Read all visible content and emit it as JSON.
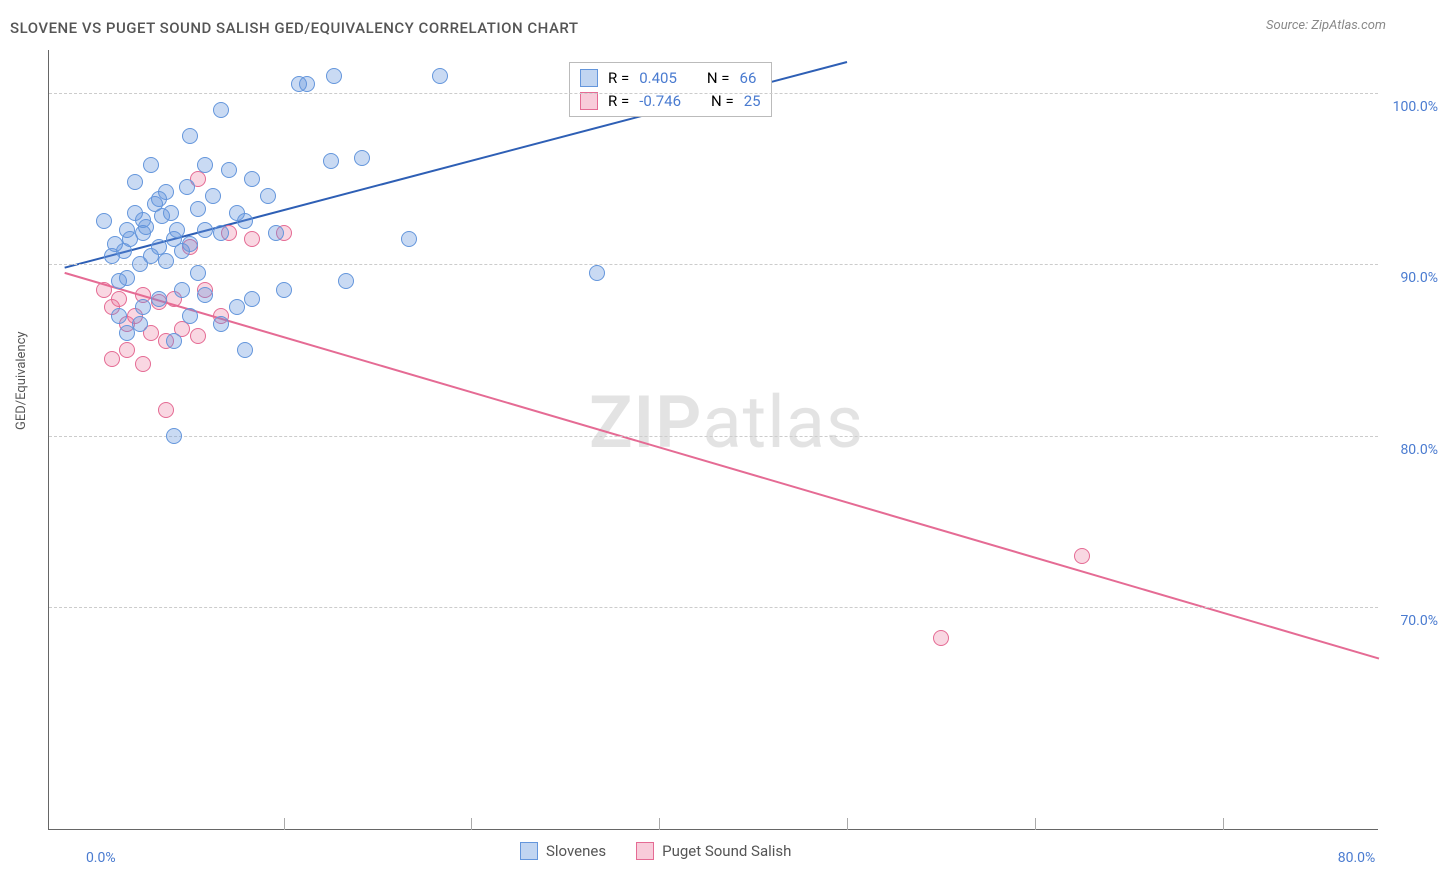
{
  "header": {
    "title": "SLOVENE VS PUGET SOUND SALISH GED/EQUIVALENCY CORRELATION CHART",
    "source_label": "Source: ZipAtlas.com"
  },
  "chart": {
    "type": "scatter",
    "ylabel": "GED/Equivalency",
    "xlim": [
      -3,
      82
    ],
    "ylim": [
      57,
      102.5
    ],
    "y_ticks": [
      70.0,
      80.0,
      90.0,
      100.0
    ],
    "y_tick_labels": [
      "70.0%",
      "80.0%",
      "90.0%",
      "100.0%"
    ],
    "x_ticks": [
      0.0,
      80.0
    ],
    "x_tick_labels": [
      "0.0%",
      "80.0%"
    ],
    "x_minor_ticks": [
      12,
      24,
      36,
      48,
      60,
      72
    ],
    "background_color": "#ffffff",
    "grid_color": "#cccccc",
    "axis_color": "#666666",
    "marker_size": 16,
    "colors": {
      "blue_fill": "rgba(100,150,220,0.35)",
      "blue_stroke": "#6496dc",
      "pink_fill": "rgba(235,110,150,0.28)",
      "pink_stroke": "#e56b94",
      "tick_label": "#4a7bd0"
    },
    "series_blue": {
      "name": "Slovenes",
      "r_value": "0.405",
      "n_value": "66",
      "trend": {
        "x1": -2,
        "y1": 89.8,
        "x2": 48,
        "y2": 101.8,
        "color": "#2e5fb5",
        "width": 2
      },
      "points": [
        [
          0.5,
          92.5
        ],
        [
          1,
          90.5
        ],
        [
          1.2,
          91.2
        ],
        [
          1.5,
          89
        ],
        [
          1.8,
          90.8
        ],
        [
          2,
          92
        ],
        [
          2.2,
          91.5
        ],
        [
          2.5,
          93
        ],
        [
          2.8,
          90
        ],
        [
          3,
          91.8
        ],
        [
          3.2,
          92.2
        ],
        [
          3.5,
          90.5
        ],
        [
          3.8,
          93.5
        ],
        [
          4,
          91
        ],
        [
          4.2,
          92.8
        ],
        [
          4.5,
          90.2
        ],
        [
          4.8,
          93
        ],
        [
          5,
          91.5
        ],
        [
          5.2,
          92
        ],
        [
          5.5,
          90.8
        ],
        [
          5.8,
          94.5
        ],
        [
          6,
          91.2
        ],
        [
          6.5,
          93.2
        ],
        [
          7,
          92
        ],
        [
          7.5,
          94
        ],
        [
          8,
          91.8
        ],
        [
          8.5,
          95.5
        ],
        [
          9,
          93
        ],
        [
          9.5,
          92.5
        ],
        [
          10,
          95
        ],
        [
          11,
          94
        ],
        [
          11.5,
          91.8
        ],
        [
          12,
          88.5
        ],
        [
          6,
          97.5
        ],
        [
          7,
          95.8
        ],
        [
          8,
          99
        ],
        [
          10,
          88
        ],
        [
          13,
          100.5
        ],
        [
          13.5,
          100.5
        ],
        [
          15,
          96
        ],
        [
          15.2,
          101
        ],
        [
          16,
          89
        ],
        [
          17,
          96.2
        ],
        [
          20,
          91.5
        ],
        [
          22,
          101
        ],
        [
          3,
          87.5
        ],
        [
          4,
          88
        ],
        [
          5,
          85.5
        ],
        [
          5.5,
          88.5
        ],
        [
          6,
          87
        ],
        [
          6.5,
          89.5
        ],
        [
          7,
          88.2
        ],
        [
          8,
          86.5
        ],
        [
          9,
          87.5
        ],
        [
          9.5,
          85
        ],
        [
          2,
          86
        ],
        [
          5,
          80
        ],
        [
          2.5,
          94.8
        ],
        [
          3.5,
          95.8
        ],
        [
          4.5,
          94.2
        ],
        [
          32,
          89.5
        ],
        [
          2,
          89.2
        ],
        [
          3,
          92.6
        ],
        [
          4,
          93.8
        ],
        [
          1.5,
          87
        ],
        [
          2.8,
          86.5
        ]
      ]
    },
    "series_pink": {
      "name": "Puget Sound Salish",
      "r_value": "-0.746",
      "n_value": "25",
      "trend": {
        "x1": -2,
        "y1": 89.5,
        "x2": 82,
        "y2": 67,
        "color": "#e56b94",
        "width": 2
      },
      "points": [
        [
          0.5,
          88.5
        ],
        [
          1,
          87.5
        ],
        [
          1.5,
          88
        ],
        [
          2,
          86.5
        ],
        [
          2.5,
          87
        ],
        [
          3,
          88.2
        ],
        [
          3.5,
          86
        ],
        [
          4,
          87.8
        ],
        [
          4.5,
          85.5
        ],
        [
          5,
          88
        ],
        [
          5.5,
          86.2
        ],
        [
          6,
          91
        ],
        [
          6.5,
          85.8
        ],
        [
          7,
          88.5
        ],
        [
          8,
          87
        ],
        [
          8.5,
          91.8
        ],
        [
          10,
          91.5
        ],
        [
          12,
          91.8
        ],
        [
          4.5,
          81.5
        ],
        [
          1,
          84.5
        ],
        [
          2,
          85
        ],
        [
          3,
          84.2
        ],
        [
          63,
          73
        ],
        [
          54,
          68.2
        ],
        [
          6.5,
          95
        ]
      ]
    },
    "info_box": {
      "r_label": "R  =",
      "n_label": "N  ="
    },
    "watermark": {
      "text_bold": "ZIP",
      "text_light": "atlas"
    },
    "legend": {
      "items": [
        {
          "swatch": "blue",
          "label": "Slovenes"
        },
        {
          "swatch": "pink",
          "label": "Puget Sound Salish"
        }
      ]
    }
  }
}
